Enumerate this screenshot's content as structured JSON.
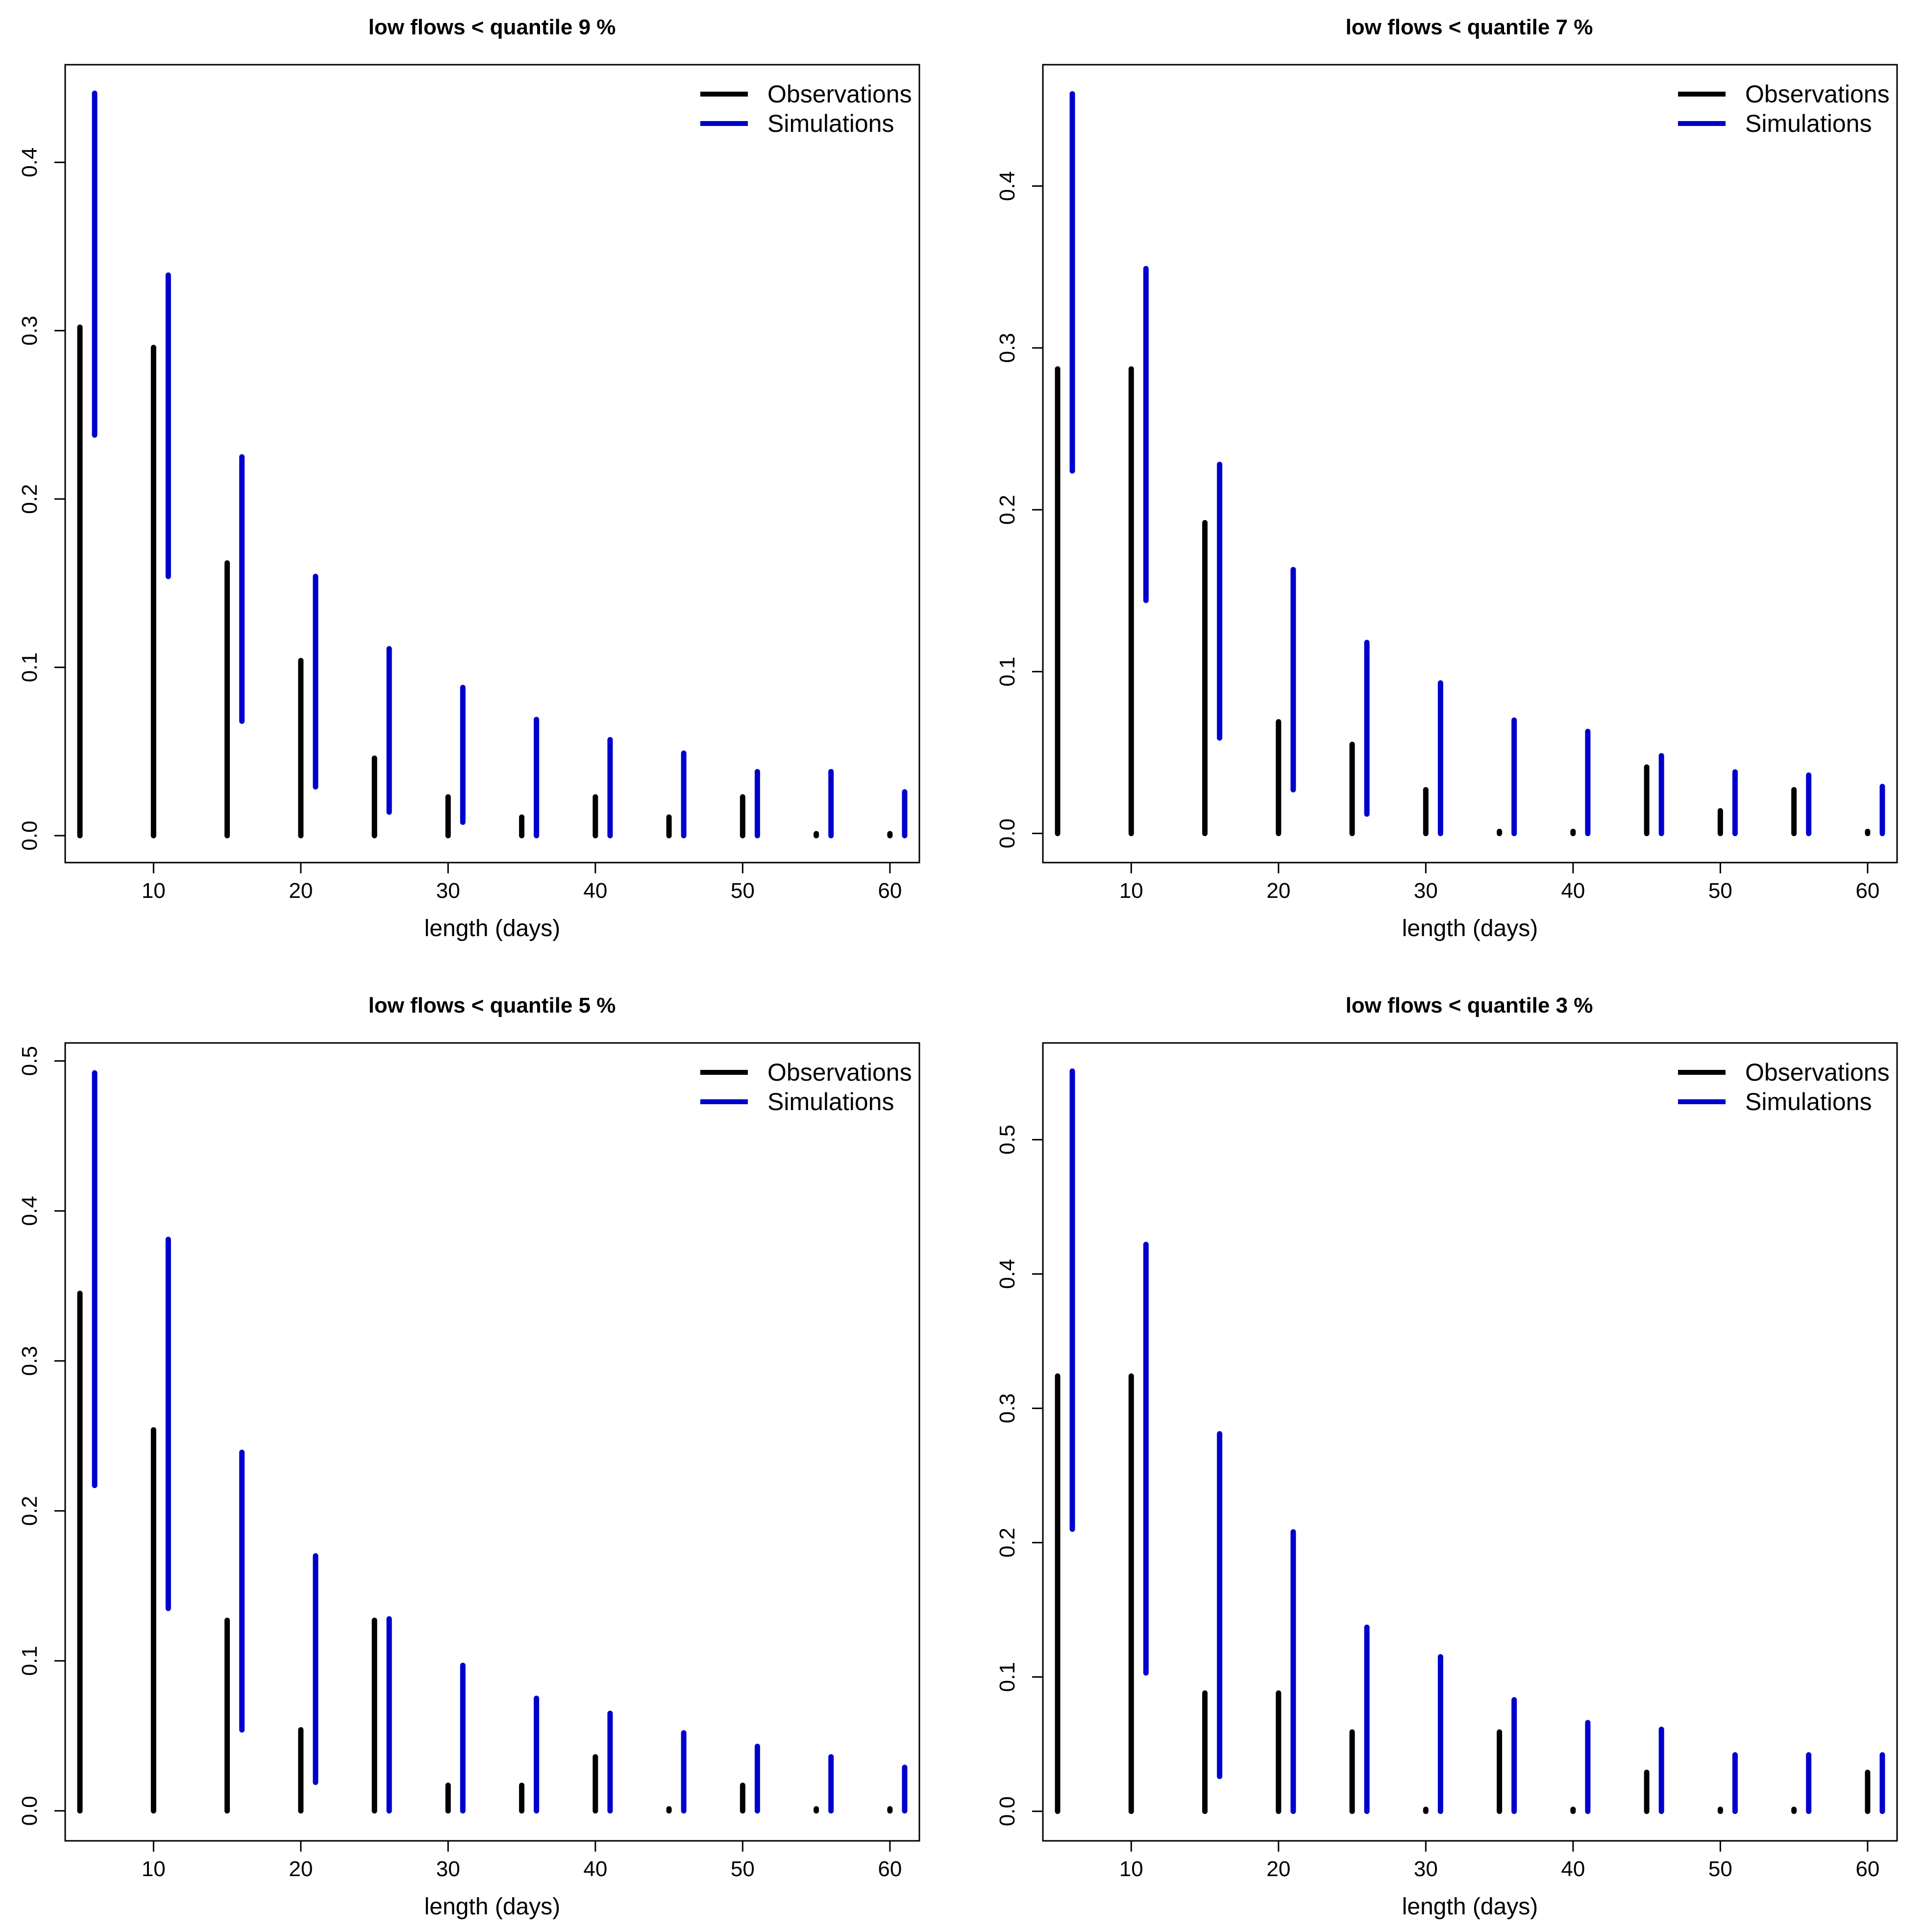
{
  "figure": {
    "legend_entries": [
      "Observations",
      "Simulations"
    ],
    "colors": {
      "observations": "#000000",
      "simulations": "#0000CD",
      "axis": "#000000"
    }
  },
  "chart_data": [
    {
      "type": "bar",
      "title": "low flows < quantile 9  %",
      "xlabel": "length (days)",
      "ylabel": "",
      "xlim": [
        4,
        62
      ],
      "ylim": [
        -0.016,
        0.458
      ],
      "x_ticks": [
        10,
        20,
        30,
        40,
        50,
        60
      ],
      "y_ticks": [
        0.0,
        0.1,
        0.2,
        0.3,
        0.4
      ],
      "legend": "top-right",
      "series": [
        {
          "name": "Observations",
          "x": [
            5,
            10,
            15,
            20,
            25,
            30,
            35,
            40,
            45,
            50,
            55,
            60
          ],
          "low": [
            0,
            0,
            0,
            0,
            0,
            0,
            0,
            0,
            0,
            0,
            0,
            0
          ],
          "high": [
            0.302,
            0.29,
            0.162,
            0.104,
            0.046,
            0.023,
            0.011,
            0.023,
            0.011,
            0.023,
            0,
            0
          ]
        },
        {
          "name": "Simulations",
          "x": [
            6,
            11,
            16,
            21,
            26,
            31,
            36,
            41,
            46,
            51,
            56,
            61
          ],
          "low": [
            0.238,
            0.154,
            0.068,
            0.029,
            0.014,
            0.008,
            0,
            0,
            0,
            0,
            0,
            0
          ],
          "high": [
            0.441,
            0.333,
            0.225,
            0.154,
            0.111,
            0.088,
            0.069,
            0.057,
            0.049,
            0.038,
            0.038,
            0.026
          ]
        }
      ]
    },
    {
      "type": "bar",
      "title": "low flows < quantile 7  %",
      "xlabel": "length (days)",
      "ylabel": "",
      "xlim": [
        4,
        62
      ],
      "ylim": [
        -0.018,
        0.475
      ],
      "x_ticks": [
        10,
        20,
        30,
        40,
        50,
        60
      ],
      "y_ticks": [
        0.0,
        0.1,
        0.2,
        0.3,
        0.4
      ],
      "legend": "top-right",
      "series": [
        {
          "name": "Observations",
          "x": [
            5,
            10,
            15,
            20,
            25,
            30,
            35,
            40,
            45,
            50,
            55,
            60
          ],
          "low": [
            0,
            0,
            0,
            0,
            0,
            0,
            0,
            0,
            0,
            0,
            0,
            0
          ],
          "high": [
            0.287,
            0.287,
            0.192,
            0.069,
            0.055,
            0.027,
            0,
            0,
            0.041,
            0.014,
            0.027,
            0
          ]
        },
        {
          "name": "Simulations",
          "x": [
            6,
            11,
            16,
            21,
            26,
            31,
            36,
            41,
            46,
            51,
            56,
            61
          ],
          "low": [
            0.224,
            0.144,
            0.059,
            0.027,
            0.012,
            0,
            0,
            0,
            0,
            0,
            0,
            0
          ],
          "high": [
            0.457,
            0.349,
            0.228,
            0.163,
            0.118,
            0.093,
            0.07,
            0.063,
            0.048,
            0.038,
            0.036,
            0.029
          ]
        }
      ]
    },
    {
      "type": "bar",
      "title": "low flows < quantile 5  %",
      "xlabel": "length (days)",
      "ylabel": "",
      "xlim": [
        4,
        62
      ],
      "ylim": [
        -0.02,
        0.512
      ],
      "x_ticks": [
        10,
        20,
        30,
        40,
        50,
        60
      ],
      "y_ticks": [
        0.0,
        0.1,
        0.2,
        0.3,
        0.4,
        0.5
      ],
      "legend": "top-right",
      "series": [
        {
          "name": "Observations",
          "x": [
            5,
            10,
            15,
            20,
            25,
            30,
            35,
            40,
            45,
            50,
            55,
            60
          ],
          "low": [
            0,
            0,
            0,
            0,
            0,
            0,
            0,
            0,
            0,
            0,
            0,
            0
          ],
          "high": [
            0.345,
            0.254,
            0.127,
            0.054,
            0.127,
            0.017,
            0.017,
            0.036,
            0,
            0.017,
            0,
            0
          ]
        },
        {
          "name": "Simulations",
          "x": [
            6,
            11,
            16,
            21,
            26,
            31,
            36,
            41,
            46,
            51,
            56,
            61
          ],
          "low": [
            0.217,
            0.135,
            0.054,
            0.019,
            0,
            0,
            0,
            0,
            0,
            0,
            0,
            0
          ],
          "high": [
            0.492,
            0.381,
            0.239,
            0.17,
            0.128,
            0.097,
            0.075,
            0.065,
            0.052,
            0.043,
            0.036,
            0.029
          ]
        }
      ]
    },
    {
      "type": "bar",
      "title": "low flows < quantile 3  %",
      "xlabel": "length (days)",
      "ylabel": "",
      "xlim": [
        4,
        62
      ],
      "ylim": [
        -0.022,
        0.572
      ],
      "x_ticks": [
        10,
        20,
        30,
        40,
        50,
        60
      ],
      "y_ticks": [
        0.0,
        0.1,
        0.2,
        0.3,
        0.4,
        0.5
      ],
      "legend": "top-right",
      "series": [
        {
          "name": "Observations",
          "x": [
            5,
            10,
            15,
            20,
            25,
            30,
            35,
            40,
            45,
            50,
            55,
            60
          ],
          "low": [
            0,
            0,
            0,
            0,
            0,
            0,
            0,
            0,
            0,
            0,
            0,
            0
          ],
          "high": [
            0.324,
            0.324,
            0.088,
            0.088,
            0.059,
            0,
            0.059,
            0,
            0.029,
            0,
            0,
            0.029
          ]
        },
        {
          "name": "Simulations",
          "x": [
            6,
            11,
            16,
            21,
            26,
            31,
            36,
            41,
            46,
            51,
            56,
            61
          ],
          "low": [
            0.21,
            0.103,
            0.026,
            0,
            0,
            0,
            0,
            0,
            0,
            0,
            0,
            0
          ],
          "high": [
            0.551,
            0.422,
            0.281,
            0.208,
            0.137,
            0.115,
            0.083,
            0.066,
            0.061,
            0.042,
            0.042,
            0.042
          ]
        }
      ]
    }
  ]
}
